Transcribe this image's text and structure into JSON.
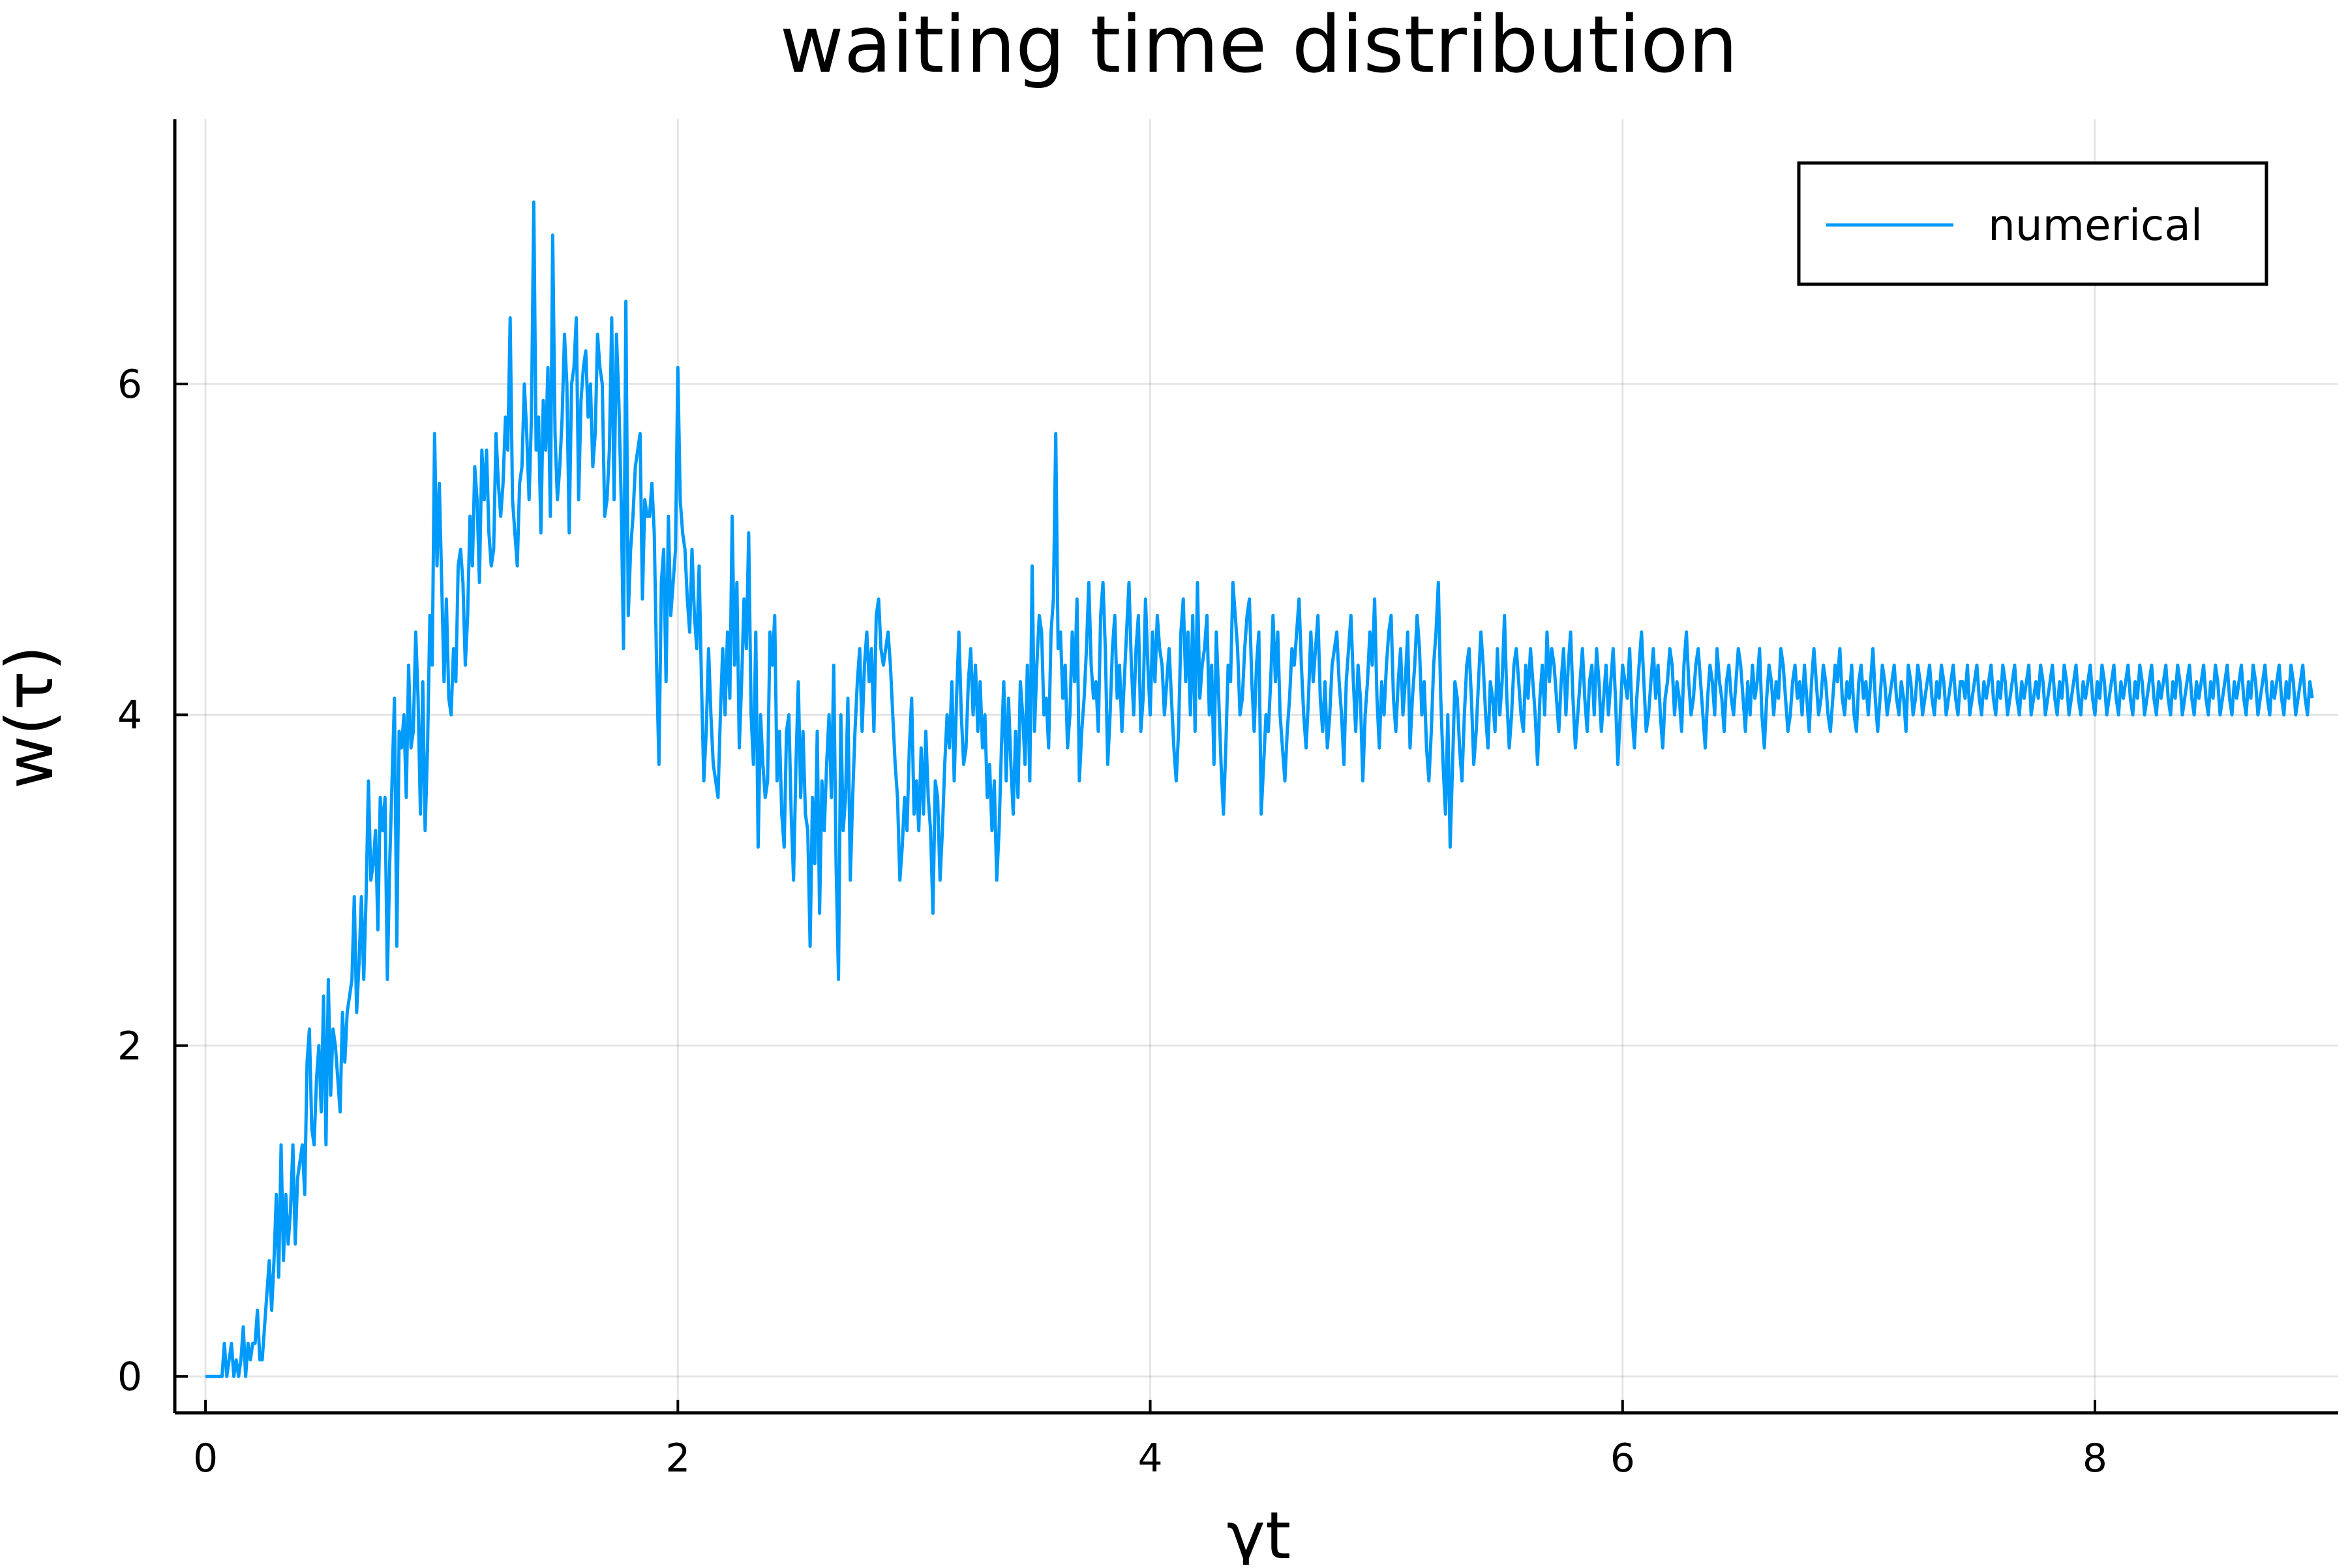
{
  "chart_data": {
    "type": "line",
    "title": "waiting time distribution",
    "xlabel": "γt",
    "ylabel": "w(τ)",
    "xlim": [
      -0.13,
      9.03
    ],
    "ylim": [
      -0.22,
      7.6
    ],
    "xticks": [
      0,
      2,
      4,
      6,
      8
    ],
    "yticks": [
      0,
      2,
      4,
      6
    ],
    "xtick_labels": [
      "0",
      "2",
      "4",
      "6",
      "8"
    ],
    "ytick_labels": [
      "0",
      "2",
      "4",
      "6"
    ],
    "grid": true,
    "legend_position": "top-right",
    "line_color": "#009AFA",
    "series": [
      {
        "name": "numerical",
        "x_start": 0.0,
        "x_step": 0.01,
        "values": [
          0.0,
          0.0,
          0.0,
          0.0,
          0.0,
          0.0,
          0.0,
          0.0,
          0.2,
          0.0,
          0.1,
          0.2,
          0.0,
          0.1,
          0.0,
          0.1,
          0.3,
          0.0,
          0.2,
          0.1,
          0.2,
          0.2,
          0.4,
          0.1,
          0.1,
          0.3,
          0.5,
          0.7,
          0.4,
          0.7,
          1.1,
          0.6,
          1.4,
          0.7,
          1.1,
          0.8,
          1.0,
          1.4,
          0.8,
          1.2,
          1.3,
          1.4,
          1.1,
          1.9,
          2.1,
          1.5,
          1.4,
          1.8,
          2.0,
          1.6,
          2.3,
          1.4,
          2.4,
          1.7,
          2.1,
          2.0,
          1.8,
          1.6,
          2.2,
          1.9,
          2.2,
          2.3,
          2.4,
          2.9,
          2.2,
          2.5,
          2.9,
          2.4,
          2.9,
          3.6,
          3.0,
          3.1,
          3.3,
          2.7,
          3.5,
          3.3,
          3.5,
          2.4,
          3.1,
          3.6,
          4.1,
          2.6,
          3.9,
          3.8,
          4.0,
          3.5,
          4.3,
          3.8,
          3.9,
          4.5,
          4.1,
          3.4,
          4.2,
          3.3,
          3.8,
          4.6,
          4.3,
          5.7,
          4.9,
          5.4,
          4.8,
          4.2,
          4.7,
          4.1,
          4.0,
          4.4,
          4.2,
          4.9,
          5.0,
          4.8,
          4.3,
          4.6,
          5.2,
          4.9,
          5.5,
          5.3,
          4.8,
          5.6,
          5.3,
          5.6,
          5.1,
          4.9,
          5.0,
          5.7,
          5.4,
          5.2,
          5.4,
          5.8,
          5.6,
          6.4,
          5.3,
          5.1,
          4.9,
          5.4,
          5.5,
          6.0,
          5.7,
          5.3,
          5.8,
          7.1,
          5.6,
          5.8,
          5.1,
          5.9,
          5.6,
          6.1,
          5.2,
          6.9,
          5.7,
          5.3,
          5.5,
          5.8,
          6.3,
          6.0,
          5.1,
          6.0,
          6.1,
          6.4,
          5.3,
          5.9,
          6.1,
          6.2,
          5.8,
          6.0,
          5.5,
          5.7,
          6.3,
          6.1,
          6.0,
          5.2,
          5.3,
          5.6,
          6.4,
          5.3,
          6.3,
          5.9,
          5.3,
          4.4,
          6.5,
          4.6,
          5.0,
          5.2,
          5.5,
          5.6,
          5.7,
          4.7,
          5.3,
          5.2,
          5.2,
          5.4,
          5.1,
          4.3,
          3.7,
          4.8,
          5.0,
          4.2,
          5.2,
          4.6,
          4.8,
          5.0,
          6.1,
          5.3,
          5.1,
          5.0,
          4.7,
          4.5,
          5.0,
          4.6,
          4.4,
          4.9,
          4.2,
          3.6,
          3.9,
          4.4,
          4.0,
          3.7,
          3.6,
          3.5,
          4.0,
          4.4,
          4.0,
          4.5,
          4.1,
          5.2,
          4.3,
          4.8,
          3.8,
          4.2,
          4.7,
          4.4,
          5.1,
          4.0,
          3.7,
          4.5,
          3.2,
          4.0,
          3.7,
          3.5,
          3.6,
          4.5,
          4.3,
          4.6,
          3.6,
          3.9,
          3.4,
          3.2,
          3.9,
          4.0,
          3.4,
          3.0,
          3.7,
          4.2,
          3.5,
          3.9,
          3.4,
          3.3,
          2.6,
          3.5,
          3.1,
          3.9,
          2.8,
          3.6,
          3.3,
          3.7,
          4.0,
          3.5,
          4.3,
          3.1,
          2.4,
          4.0,
          3.3,
          3.5,
          4.1,
          3.0,
          3.5,
          3.9,
          4.2,
          4.4,
          3.9,
          4.3,
          4.5,
          4.2,
          4.4,
          3.9,
          4.6,
          4.7,
          4.4,
          4.3,
          4.4,
          4.5,
          4.3,
          4.0,
          3.7,
          3.5,
          3.0,
          3.2,
          3.5,
          3.3,
          3.8,
          4.1,
          3.4,
          3.6,
          3.3,
          3.8,
          3.4,
          3.9,
          3.5,
          3.3,
          2.8,
          3.6,
          3.5,
          3.0,
          3.3,
          3.7,
          4.0,
          3.8,
          4.2,
          3.6,
          4.1,
          4.5,
          4.0,
          3.7,
          3.8,
          4.2,
          4.4,
          4.0,
          4.3,
          3.9,
          4.2,
          3.8,
          4.0,
          3.5,
          3.7,
          3.3,
          3.6,
          3.0,
          3.3,
          3.8,
          4.2,
          3.6,
          4.1,
          3.7,
          3.4,
          3.9,
          3.5,
          4.2,
          4.0,
          3.7,
          4.3,
          3.6,
          4.9,
          3.9,
          4.3,
          4.6,
          4.5,
          4.0,
          4.1,
          3.8,
          4.5,
          4.7,
          5.7,
          4.4,
          4.5,
          4.1,
          4.3,
          3.8,
          4.0,
          4.5,
          4.2,
          4.7,
          3.6,
          3.9,
          4.1,
          4.4,
          4.8,
          4.3,
          4.1,
          4.2,
          3.9,
          4.6,
          4.8,
          4.4,
          3.7,
          4.0,
          4.4,
          4.6,
          4.1,
          4.3,
          3.9,
          4.2,
          4.5,
          4.8,
          4.3,
          4.0,
          4.4,
          4.6,
          3.9,
          4.1,
          4.7,
          4.3,
          4.0,
          4.5,
          4.2,
          4.6,
          4.4,
          4.3,
          4.0,
          4.2,
          4.4,
          4.1,
          3.8,
          3.6,
          3.9,
          4.5,
          4.7,
          4.2,
          4.5,
          4.0,
          4.6,
          3.9,
          4.8,
          4.1,
          4.3,
          4.4,
          4.6,
          4.0,
          4.3,
          3.7,
          4.5,
          4.1,
          3.7,
          3.4,
          3.8,
          4.3,
          4.2,
          4.8,
          4.6,
          4.4,
          4.0,
          4.1,
          4.4,
          4.6,
          4.7,
          4.2,
          3.9,
          4.3,
          4.5,
          3.4,
          3.7,
          4.0,
          3.9,
          4.2,
          4.6,
          4.2,
          4.5,
          4.0,
          3.8,
          3.6,
          3.9,
          4.1,
          4.4,
          4.3,
          4.5,
          4.7,
          4.3,
          4.0,
          3.8,
          4.1,
          4.5,
          4.2,
          4.4,
          4.6,
          4.1,
          3.9,
          4.2,
          3.8,
          4.0,
          4.3,
          4.4,
          4.5,
          4.2,
          4.0,
          3.7,
          4.2,
          4.4,
          4.6,
          4.2,
          3.9,
          4.3,
          4.1,
          3.6,
          4.0,
          4.2,
          4.5,
          4.3,
          4.7,
          4.1,
          3.8,
          4.2,
          4.0,
          4.3,
          4.5,
          4.6,
          4.1,
          3.9,
          4.2,
          4.4,
          4.0,
          4.2,
          4.5,
          3.8,
          4.1,
          4.3,
          4.6,
          4.4,
          4.0,
          4.2,
          3.8,
          3.6,
          3.9,
          4.3,
          4.5,
          4.8,
          4.1,
          3.7,
          3.4,
          4.0,
          3.2,
          3.7,
          4.2,
          4.1,
          3.8,
          3.6,
          4.0,
          4.3,
          4.4,
          4.1,
          3.7,
          3.9,
          4.2,
          4.5,
          4.3,
          4.0,
          3.8,
          4.2,
          4.1,
          3.9,
          4.4,
          4.0,
          4.2,
          4.6,
          4.1,
          3.8,
          4.0,
          4.3,
          4.4,
          4.2,
          4.0,
          3.9,
          4.3,
          4.1,
          4.4,
          4.2,
          4.0,
          3.7,
          4.1,
          4.3,
          4.0,
          4.5,
          4.2,
          4.4,
          4.3,
          4.1,
          3.9,
          4.2,
          4.4,
          4.0,
          4.3,
          4.5,
          4.1,
          3.8,
          4.0,
          4.2,
          4.4,
          4.1,
          3.9,
          4.2,
          4.3,
          4.0,
          4.4,
          4.2,
          3.9,
          4.1,
          4.3,
          4.0,
          4.2,
          4.4,
          4.1,
          3.7,
          4.0,
          4.3,
          4.2,
          4.1,
          4.4,
          4.0,
          3.8,
          4.1,
          4.3,
          4.5,
          4.2,
          3.9,
          4.0,
          4.2,
          4.4,
          4.1,
          4.3,
          4.0,
          3.8,
          4.1,
          4.2,
          4.4,
          4.3,
          4.0,
          4.2,
          4.1,
          3.9,
          4.3,
          4.5,
          4.2,
          4.0,
          4.1,
          4.3,
          4.4,
          4.2,
          4.0,
          3.8,
          4.1,
          4.3,
          4.2,
          4.0,
          4.4,
          4.2,
          4.1,
          3.9,
          4.2,
          4.3,
          4.1,
          4.0,
          4.2,
          4.4,
          4.3,
          4.1,
          3.9,
          4.2,
          4.0,
          4.3,
          4.1,
          4.2,
          4.4,
          4.0,
          3.8,
          4.1,
          4.3,
          4.2,
          4.0,
          4.2,
          4.1,
          4.4,
          4.3,
          4.1,
          3.9,
          4.0,
          4.2,
          4.3,
          4.1,
          4.2,
          4.0,
          4.3,
          4.1,
          3.9,
          4.2,
          4.4,
          4.2,
          4.0,
          4.1,
          4.3,
          4.2,
          4.0,
          3.9,
          4.1,
          4.3,
          4.2,
          4.4,
          4.1,
          4.0,
          4.2,
          4.1,
          4.3,
          4.0,
          3.9,
          4.2,
          4.3,
          4.1,
          4.2,
          4.0,
          4.2,
          4.4,
          4.1,
          3.9,
          4.1,
          4.3,
          4.2,
          4.0,
          4.1,
          4.2,
          4.3,
          4.1,
          4.0,
          4.2,
          4.1,
          3.9,
          4.3,
          4.2,
          4.0,
          4.1,
          4.3,
          4.2,
          4.0,
          4.1,
          4.2,
          4.3,
          4.1,
          4.0,
          4.2,
          4.1,
          4.3,
          4.2,
          4.0,
          4.1,
          4.2,
          4.3,
          4.1,
          4.0,
          4.2,
          4.2,
          4.1,
          4.3,
          4.0,
          4.1,
          4.2,
          4.3,
          4.1,
          4.0,
          4.2,
          4.1,
          4.2,
          4.3,
          4.1,
          4.0,
          4.2,
          4.1,
          4.3,
          4.2,
          4.0,
          4.1,
          4.2,
          4.3,
          4.1,
          4.0,
          4.2,
          4.1,
          4.2,
          4.3,
          4.0,
          4.1,
          4.2,
          4.1,
          4.3,
          4.2,
          4.0,
          4.1,
          4.2,
          4.3,
          4.1,
          4.0,
          4.2,
          4.1,
          4.3,
          4.2,
          4.0,
          4.1,
          4.2,
          4.3,
          4.1,
          4.0,
          4.2,
          4.1,
          4.2,
          4.3,
          4.1,
          4.0,
          4.2,
          4.1,
          4.3,
          4.2,
          4.0,
          4.1,
          4.2,
          4.3,
          4.1,
          4.0,
          4.2,
          4.1,
          4.2,
          4.3,
          4.1,
          4.0,
          4.2,
          4.1,
          4.3,
          4.2,
          4.0,
          4.1,
          4.2,
          4.3,
          4.1,
          4.0,
          4.2,
          4.1,
          4.2,
          4.3,
          4.1,
          4.0,
          4.2,
          4.1,
          4.3,
          4.2,
          4.0,
          4.1,
          4.2,
          4.3,
          4.1,
          4.0,
          4.2,
          4.1,
          4.2,
          4.3,
          4.1,
          4.0,
          4.2,
          4.1,
          4.3,
          4.2,
          4.0,
          4.1,
          4.2,
          4.3,
          4.1,
          4.0,
          4.2,
          4.1,
          4.2,
          4.3,
          4.1,
          4.0,
          4.2,
          4.1,
          4.3,
          4.2,
          4.0,
          4.1,
          4.2,
          4.3,
          4.1,
          4.0,
          4.2,
          4.1,
          4.2,
          4.3,
          4.1,
          4.0,
          4.2,
          4.1,
          4.3,
          4.2,
          4.0,
          4.1,
          4.2,
          4.3,
          4.1,
          4.0,
          4.2,
          4.1
        ]
      }
    ]
  }
}
